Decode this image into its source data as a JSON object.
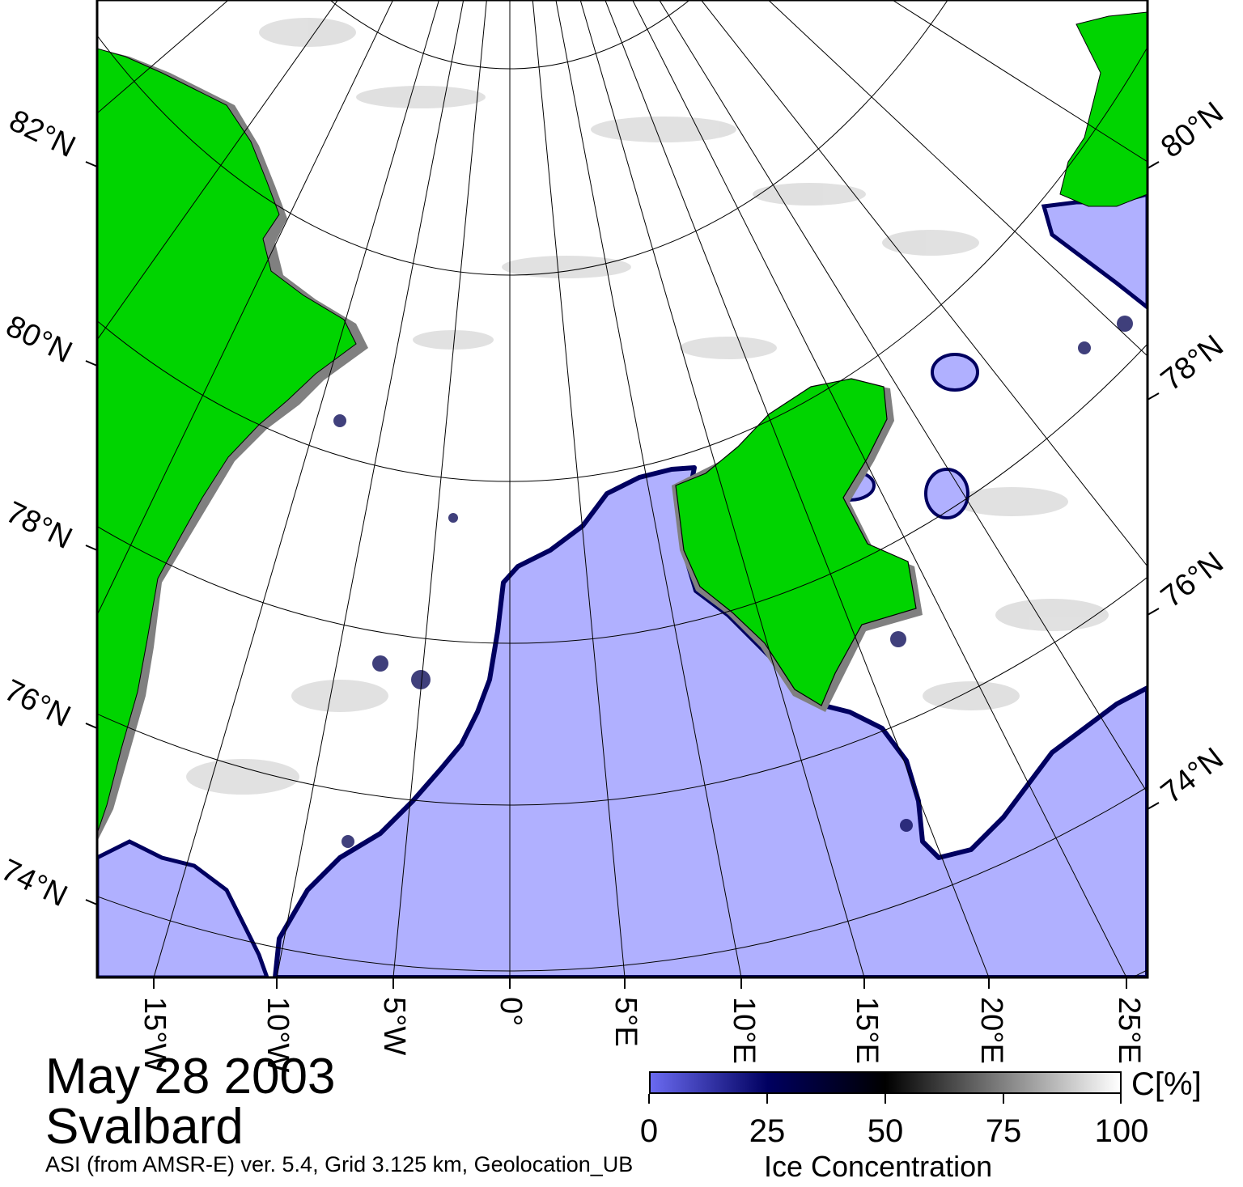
{
  "title": {
    "date": "May 28 2003",
    "region": "Svalbard",
    "source": "ASI (from AMSR-E) ver. 5.4,  Grid 3.125 km, Geolocation_UB"
  },
  "map": {
    "left_lat_labels": [
      "82°N",
      "80°N",
      "78°N",
      "76°N",
      "74°N"
    ],
    "right_lat_labels": [
      "80°N",
      "78°N",
      "76°N",
      "74°N"
    ],
    "lon_labels": [
      "15°W",
      "10°W",
      "5°W",
      "0°",
      "5°E",
      "10°E",
      "15°E",
      "20°E",
      "25°E"
    ],
    "colors": {
      "land": "#00d400",
      "open_water": "#b0b0ff",
      "coast_mask": "#808080",
      "high_ice": "#ffffff"
    }
  },
  "colorbar": {
    "title": "Ice Concentration",
    "unit": "C[%]",
    "ticks": [
      "0",
      "25",
      "50",
      "75",
      "100"
    ],
    "stops": [
      "#6a6af0",
      "#000060",
      "#000000",
      "#808080",
      "#ffffff"
    ]
  }
}
